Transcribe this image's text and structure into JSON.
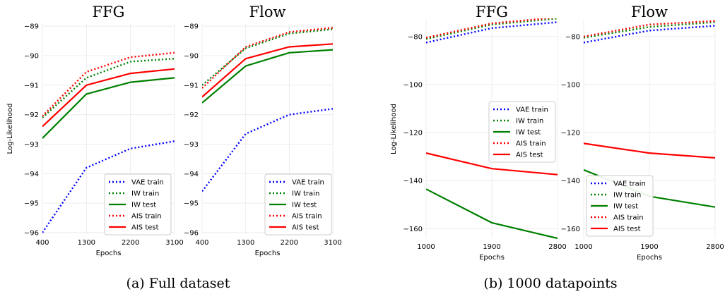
{
  "captions": [
    "(a) Full dataset",
    "(b) 1000 datapoints"
  ],
  "colors": {
    "blue": "#0000ff",
    "green": "#008000",
    "red": "#ff0000"
  },
  "chart_data": [
    {
      "type": "line",
      "title": "FFG",
      "xlabel": "Epochs",
      "ylabel": "Log-Likelihood",
      "xticks": [
        400,
        1300,
        2200,
        3100
      ],
      "yticks": [
        -96,
        -95,
        -94,
        -93,
        -92,
        -91,
        -90,
        -89
      ],
      "xlim": [
        400,
        3100
      ],
      "ylim": [
        -96.05,
        -88.9
      ],
      "grid": true,
      "legend_position": "bottom-right",
      "series": [
        {
          "name": "VAE train",
          "style": "dotted",
          "color": "#0000ff",
          "x": [
            400,
            1300,
            2200,
            3100
          ],
          "values": [
            -96.0,
            -93.8,
            -93.15,
            -92.9
          ]
        },
        {
          "name": "IW train",
          "style": "dotted",
          "color": "#008000",
          "x": [
            400,
            1300,
            2200,
            3100
          ],
          "values": [
            -92.1,
            -90.75,
            -90.2,
            -90.1
          ]
        },
        {
          "name": "IW test",
          "style": "solid",
          "color": "#008000",
          "x": [
            400,
            1300,
            2200,
            3100
          ],
          "values": [
            -92.8,
            -91.3,
            -90.9,
            -90.75
          ]
        },
        {
          "name": "AIS train",
          "style": "dotted",
          "color": "#ff0000",
          "x": [
            400,
            1300,
            2200,
            3100
          ],
          "values": [
            -92.05,
            -90.55,
            -90.05,
            -89.9
          ]
        },
        {
          "name": "AIS test",
          "style": "solid",
          "color": "#ff0000",
          "x": [
            400,
            1300,
            2200,
            3100
          ],
          "values": [
            -92.4,
            -91.0,
            -90.6,
            -90.45
          ]
        }
      ]
    },
    {
      "type": "line",
      "title": "Flow",
      "xlabel": "Epochs",
      "ylabel": "",
      "xticks": [
        400,
        1300,
        2200,
        3100
      ],
      "yticks": [
        -96,
        -95,
        -94,
        -93,
        -92,
        -91,
        -90,
        -89
      ],
      "xlim": [
        400,
        3100
      ],
      "ylim": [
        -96.05,
        -88.9
      ],
      "grid": true,
      "legend_position": "bottom-right",
      "series": [
        {
          "name": "VAE train",
          "style": "dotted",
          "color": "#0000ff",
          "x": [
            400,
            1300,
            2200,
            3100
          ],
          "values": [
            -94.6,
            -92.65,
            -92.0,
            -91.8
          ]
        },
        {
          "name": "IW train",
          "style": "dotted",
          "color": "#008000",
          "x": [
            400,
            1300,
            2200,
            3100
          ],
          "values": [
            -91.0,
            -89.75,
            -89.25,
            -89.1
          ]
        },
        {
          "name": "IW test",
          "style": "solid",
          "color": "#008000",
          "x": [
            400,
            1300,
            2200,
            3100
          ],
          "values": [
            -91.6,
            -90.35,
            -89.9,
            -89.8
          ]
        },
        {
          "name": "AIS train",
          "style": "dotted",
          "color": "#ff0000",
          "x": [
            400,
            1300,
            2200,
            3100
          ],
          "values": [
            -91.1,
            -89.7,
            -89.2,
            -89.05
          ]
        },
        {
          "name": "AIS test",
          "style": "solid",
          "color": "#ff0000",
          "x": [
            400,
            1300,
            2200,
            3100
          ],
          "values": [
            -91.4,
            -90.1,
            -89.7,
            -89.6
          ]
        }
      ]
    },
    {
      "type": "line",
      "title": "FFG",
      "xlabel": "Epochs",
      "ylabel": "Log-Likelihood",
      "xticks": [
        1000,
        1900,
        2800
      ],
      "yticks": [
        -160,
        -140,
        -120,
        -100,
        -80
      ],
      "xlim": [
        1000,
        2800
      ],
      "ylim": [
        -164,
        -73
      ],
      "grid": true,
      "legend_position": "center",
      "series": [
        {
          "name": "VAE train",
          "style": "dotted",
          "color": "#0000ff",
          "x": [
            1000,
            1900,
            2800
          ],
          "values": [
            -82.5,
            -76.5,
            -74.0
          ]
        },
        {
          "name": "IW train",
          "style": "dotted",
          "color": "#008000",
          "x": [
            1000,
            1900,
            2800
          ],
          "values": [
            -81.0,
            -75.0,
            -72.5
          ]
        },
        {
          "name": "IW test",
          "style": "solid",
          "color": "#008000",
          "x": [
            1000,
            1900,
            2800
          ],
          "values": [
            -143.5,
            -157.5,
            -164.0
          ]
        },
        {
          "name": "AIS train",
          "style": "dotted",
          "color": "#ff0000",
          "x": [
            1000,
            1900,
            2800
          ],
          "values": [
            -80.5,
            -74.5,
            -72.0
          ]
        },
        {
          "name": "AIS test",
          "style": "solid",
          "color": "#ff0000",
          "x": [
            1000,
            1900,
            2800
          ],
          "values": [
            -128.5,
            -135.0,
            -137.5
          ]
        }
      ]
    },
    {
      "type": "line",
      "title": "Flow",
      "xlabel": "Epochs",
      "ylabel": "",
      "xticks": [
        1000,
        1900,
        2800
      ],
      "yticks": [
        -160,
        -140,
        -120,
        -100,
        -80
      ],
      "xlim": [
        1000,
        2800
      ],
      "ylim": [
        -164,
        -73
      ],
      "grid": true,
      "legend_position": "bottom-left",
      "series": [
        {
          "name": "VAE train",
          "style": "dotted",
          "color": "#0000ff",
          "x": [
            1000,
            1900,
            2800
          ],
          "values": [
            -82.5,
            -77.5,
            -75.5
          ]
        },
        {
          "name": "IW train",
          "style": "dotted",
          "color": "#008000",
          "x": [
            1000,
            1900,
            2800
          ],
          "values": [
            -80.5,
            -76.0,
            -74.0
          ]
        },
        {
          "name": "IW test",
          "style": "solid",
          "color": "#008000",
          "x": [
            1000,
            1900,
            2800
          ],
          "values": [
            -135.5,
            -146.5,
            -151.0
          ]
        },
        {
          "name": "AIS train",
          "style": "dotted",
          "color": "#ff0000",
          "x": [
            1000,
            1900,
            2800
          ],
          "values": [
            -80.0,
            -75.0,
            -73.5
          ]
        },
        {
          "name": "AIS test",
          "style": "solid",
          "color": "#ff0000",
          "x": [
            1000,
            1900,
            2800
          ],
          "values": [
            -124.5,
            -128.5,
            -130.5
          ]
        }
      ]
    }
  ]
}
